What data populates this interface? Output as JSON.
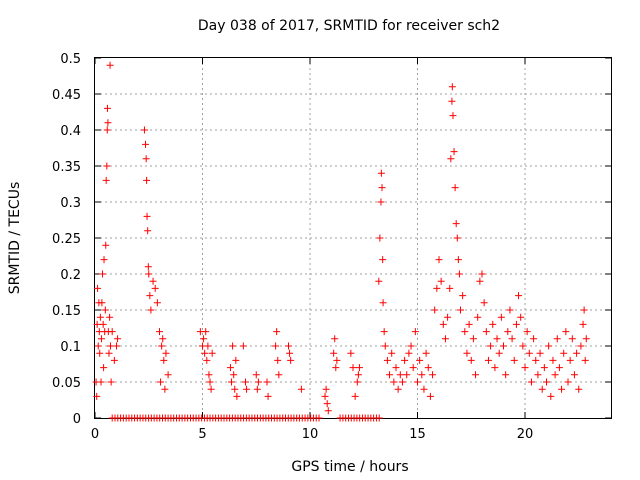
{
  "chart_data": {
    "type": "scatter",
    "title": "Day 038 of 2017, SRMTID for receiver sch2",
    "xlabel": "GPS time / hours",
    "ylabel": "SRMTID / TECUs",
    "xlim": [
      0,
      24
    ],
    "ylim": [
      0,
      0.5
    ],
    "xticks": [
      0,
      5,
      10,
      15,
      20
    ],
    "yticks": [
      0,
      0.05,
      0.1,
      0.15,
      0.2,
      0.25,
      0.3,
      0.35,
      0.4,
      0.45,
      0.5
    ],
    "grid": true,
    "legend": "none",
    "marker": "+",
    "color": "#ff0000",
    "series": [
      {
        "name": "SRMTID",
        "points": [
          [
            0.05,
            0.05
          ],
          [
            0.08,
            0.03
          ],
          [
            0.1,
            0.13
          ],
          [
            0.12,
            0.18
          ],
          [
            0.15,
            0.1
          ],
          [
            0.18,
            0.16
          ],
          [
            0.2,
            0.12
          ],
          [
            0.22,
            0.09
          ],
          [
            0.25,
            0.14
          ],
          [
            0.28,
            0.05
          ],
          [
            0.3,
            0.11
          ],
          [
            0.32,
            0.16
          ],
          [
            0.35,
            0.2
          ],
          [
            0.38,
            0.13
          ],
          [
            0.4,
            0.07
          ],
          [
            0.42,
            0.22
          ],
          [
            0.45,
            0.12
          ],
          [
            0.48,
            0.15
          ],
          [
            0.5,
            0.24
          ],
          [
            0.52,
            0.33
          ],
          [
            0.55,
            0.35
          ],
          [
            0.57,
            0.4
          ],
          [
            0.58,
            0.43
          ],
          [
            0.6,
            0.41
          ],
          [
            0.62,
            0.12
          ],
          [
            0.65,
            0.09
          ],
          [
            0.68,
            0.14
          ],
          [
            0.7,
            0.49
          ],
          [
            0.72,
            0.1
          ],
          [
            0.75,
            0.05
          ],
          [
            0.8,
            0.12
          ],
          [
            0.9,
            0.08
          ],
          [
            1.0,
            0.1
          ],
          [
            1.05,
            0.11
          ],
          [
            2.3,
            0.4
          ],
          [
            2.35,
            0.38
          ],
          [
            2.38,
            0.36
          ],
          [
            2.4,
            0.33
          ],
          [
            2.42,
            0.28
          ],
          [
            2.45,
            0.26
          ],
          [
            2.48,
            0.21
          ],
          [
            2.5,
            0.2
          ],
          [
            2.55,
            0.17
          ],
          [
            2.6,
            0.15
          ],
          [
            2.7,
            0.19
          ],
          [
            2.8,
            0.18
          ],
          [
            2.9,
            0.16
          ],
          [
            3.0,
            0.12
          ],
          [
            3.05,
            0.05
          ],
          [
            3.1,
            0.1
          ],
          [
            3.15,
            0.11
          ],
          [
            3.2,
            0.08
          ],
          [
            3.25,
            0.04
          ],
          [
            3.3,
            0.09
          ],
          [
            3.4,
            0.06
          ],
          [
            4.9,
            0.12
          ],
          [
            5.0,
            0.1
          ],
          [
            5.05,
            0.11
          ],
          [
            5.1,
            0.09
          ],
          [
            5.15,
            0.12
          ],
          [
            5.2,
            0.08
          ],
          [
            5.25,
            0.1
          ],
          [
            5.3,
            0.06
          ],
          [
            5.35,
            0.05
          ],
          [
            5.4,
            0.04
          ],
          [
            5.45,
            0.09
          ],
          [
            6.3,
            0.07
          ],
          [
            6.35,
            0.05
          ],
          [
            6.4,
            0.1
          ],
          [
            6.45,
            0.06
          ],
          [
            6.5,
            0.04
          ],
          [
            6.55,
            0.08
          ],
          [
            6.6,
            0.03
          ],
          [
            6.9,
            0.1
          ],
          [
            7.0,
            0.05
          ],
          [
            7.05,
            0.04
          ],
          [
            7.5,
            0.06
          ],
          [
            7.55,
            0.04
          ],
          [
            7.6,
            0.05
          ],
          [
            8.0,
            0.05
          ],
          [
            8.05,
            0.03
          ],
          [
            8.4,
            0.1
          ],
          [
            8.45,
            0.12
          ],
          [
            8.5,
            0.08
          ],
          [
            8.55,
            0.06
          ],
          [
            9.0,
            0.1
          ],
          [
            9.05,
            0.09
          ],
          [
            9.1,
            0.08
          ],
          [
            9.6,
            0.04
          ],
          [
            10.7,
            0.03
          ],
          [
            10.75,
            0.04
          ],
          [
            10.8,
            0.02
          ],
          [
            10.85,
            0.01
          ],
          [
            11.1,
            0.09
          ],
          [
            11.15,
            0.11
          ],
          [
            11.2,
            0.07
          ],
          [
            11.25,
            0.08
          ],
          [
            11.9,
            0.09
          ],
          [
            12.0,
            0.07
          ],
          [
            12.1,
            0.03
          ],
          [
            12.2,
            0.05
          ],
          [
            12.25,
            0.06
          ],
          [
            12.3,
            0.07
          ],
          [
            13.2,
            0.19
          ],
          [
            13.25,
            0.25
          ],
          [
            13.3,
            0.3
          ],
          [
            13.32,
            0.34
          ],
          [
            13.35,
            0.32
          ],
          [
            13.38,
            0.22
          ],
          [
            13.4,
            0.16
          ],
          [
            13.45,
            0.12
          ],
          [
            13.5,
            0.1
          ],
          [
            13.6,
            0.08
          ],
          [
            13.7,
            0.06
          ],
          [
            13.8,
            0.09
          ],
          [
            13.9,
            0.05
          ],
          [
            14.0,
            0.07
          ],
          [
            14.1,
            0.04
          ],
          [
            14.2,
            0.06
          ],
          [
            14.3,
            0.05
          ],
          [
            14.4,
            0.08
          ],
          [
            14.5,
            0.06
          ],
          [
            14.6,
            0.09
          ],
          [
            14.7,
            0.1
          ],
          [
            14.8,
            0.07
          ],
          [
            14.9,
            0.12
          ],
          [
            15.0,
            0.05
          ],
          [
            15.1,
            0.08
          ],
          [
            15.2,
            0.06
          ],
          [
            15.3,
            0.04
          ],
          [
            15.4,
            0.09
          ],
          [
            15.5,
            0.07
          ],
          [
            15.6,
            0.03
          ],
          [
            15.7,
            0.06
          ],
          [
            15.8,
            0.15
          ],
          [
            15.9,
            0.18
          ],
          [
            16.0,
            0.22
          ],
          [
            16.1,
            0.19
          ],
          [
            16.2,
            0.13
          ],
          [
            16.3,
            0.11
          ],
          [
            16.4,
            0.14
          ],
          [
            16.5,
            0.18
          ],
          [
            16.55,
            0.36
          ],
          [
            16.6,
            0.44
          ],
          [
            16.62,
            0.46
          ],
          [
            16.65,
            0.42
          ],
          [
            16.7,
            0.37
          ],
          [
            16.75,
            0.32
          ],
          [
            16.8,
            0.27
          ],
          [
            16.85,
            0.25
          ],
          [
            16.9,
            0.22
          ],
          [
            16.95,
            0.2
          ],
          [
            17.0,
            0.15
          ],
          [
            17.1,
            0.17
          ],
          [
            17.2,
            0.12
          ],
          [
            17.3,
            0.09
          ],
          [
            17.4,
            0.13
          ],
          [
            17.5,
            0.08
          ],
          [
            17.6,
            0.11
          ],
          [
            17.7,
            0.06
          ],
          [
            17.8,
            0.14
          ],
          [
            17.9,
            0.19
          ],
          [
            18.0,
            0.2
          ],
          [
            18.1,
            0.16
          ],
          [
            18.2,
            0.12
          ],
          [
            18.3,
            0.08
          ],
          [
            18.4,
            0.1
          ],
          [
            18.5,
            0.13
          ],
          [
            18.6,
            0.07
          ],
          [
            18.7,
            0.11
          ],
          [
            18.8,
            0.09
          ],
          [
            18.9,
            0.14
          ],
          [
            19.0,
            0.1
          ],
          [
            19.1,
            0.06
          ],
          [
            19.2,
            0.12
          ],
          [
            19.3,
            0.15
          ],
          [
            19.4,
            0.11
          ],
          [
            19.5,
            0.08
          ],
          [
            19.6,
            0.13
          ],
          [
            19.7,
            0.17
          ],
          [
            19.8,
            0.14
          ],
          [
            19.9,
            0.1
          ],
          [
            20.0,
            0.07
          ],
          [
            20.1,
            0.12
          ],
          [
            20.2,
            0.09
          ],
          [
            20.3,
            0.05
          ],
          [
            20.4,
            0.11
          ],
          [
            20.5,
            0.08
          ],
          [
            20.6,
            0.06
          ],
          [
            20.7,
            0.09
          ],
          [
            20.8,
            0.04
          ],
          [
            20.9,
            0.07
          ],
          [
            21.0,
            0.05
          ],
          [
            21.1,
            0.1
          ],
          [
            21.2,
            0.03
          ],
          [
            21.3,
            0.08
          ],
          [
            21.4,
            0.06
          ],
          [
            21.5,
            0.11
          ],
          [
            21.6,
            0.07
          ],
          [
            21.7,
            0.04
          ],
          [
            21.8,
            0.09
          ],
          [
            21.9,
            0.12
          ],
          [
            22.0,
            0.05
          ],
          [
            22.1,
            0.08
          ],
          [
            22.2,
            0.11
          ],
          [
            22.3,
            0.06
          ],
          [
            22.4,
            0.09
          ],
          [
            22.5,
            0.04
          ],
          [
            22.6,
            0.1
          ],
          [
            22.7,
            0.13
          ],
          [
            22.75,
            0.15
          ],
          [
            22.8,
            0.08
          ],
          [
            22.85,
            0.11
          ]
        ],
        "zero_runs": [
          {
            "from": 0.8,
            "to": 10.5,
            "step": 0.13
          },
          {
            "from": 11.4,
            "to": 13.3,
            "step": 0.13
          }
        ]
      }
    ]
  }
}
